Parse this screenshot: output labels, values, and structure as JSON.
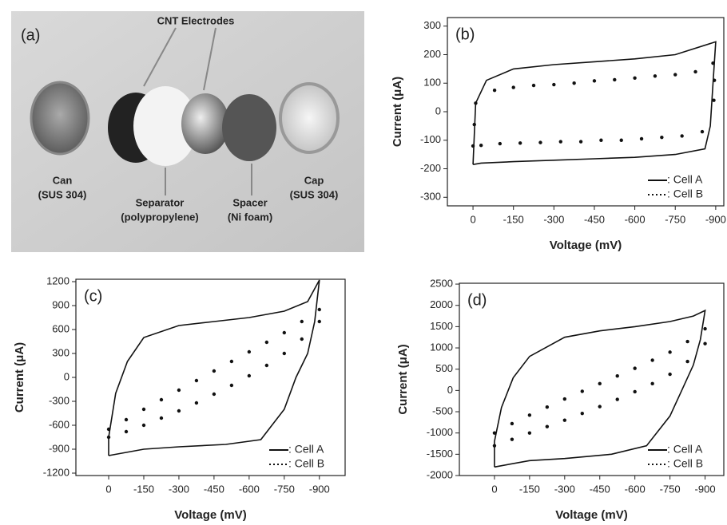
{
  "photo": {
    "label": "(a)",
    "heading": "CNT Electrodes",
    "items": [
      {
        "name": "Can",
        "detail": "(SUS 304)"
      },
      {
        "name": "Separator",
        "detail": "(polypropylene)"
      },
      {
        "name": "Spacer",
        "detail": "(Ni foam)"
      },
      {
        "name": "Cap",
        "detail": "(SUS 304)"
      }
    ]
  },
  "chart_data": [
    {
      "type": "line",
      "label": "(b)",
      "x_label": "Voltage (mV)",
      "y_label": "Current (μA)",
      "xlim": [
        95,
        -930
      ],
      "ylim": [
        -330,
        330
      ],
      "xticks": [
        0,
        -150,
        -300,
        -450,
        -600,
        -750,
        -900
      ],
      "yticks": [
        -300,
        -200,
        -100,
        0,
        100,
        200,
        300
      ],
      "legend": "lower right",
      "series": [
        {
          "name": ": Cell A",
          "style": "solid",
          "color": "#111111",
          "x": [
            0,
            -10,
            -50,
            -150,
            -300,
            -450,
            -600,
            -750,
            -900,
            -890,
            -880,
            -860,
            -750,
            -600,
            -450,
            -300,
            -150,
            -30,
            0
          ],
          "values": [
            -185,
            30,
            110,
            150,
            165,
            175,
            185,
            200,
            245,
            100,
            -50,
            -130,
            -150,
            -160,
            -165,
            -170,
            -175,
            -180,
            -185
          ]
        },
        {
          "name": ": Cell B",
          "style": "dotted",
          "color": "#111111",
          "x": [
            -10,
            -5,
            0,
            -30,
            -100,
            -175,
            -250,
            -325,
            -400,
            -475,
            -550,
            -625,
            -700,
            -775,
            -850,
            -893,
            -895,
            -890,
            -825,
            -750,
            -675,
            -600,
            -525,
            -450,
            -375,
            -300,
            -225,
            -150,
            -80
          ],
          "values": [
            30,
            -45,
            -120,
            -118,
            -112,
            -110,
            -108,
            -105,
            -105,
            -100,
            -100,
            -95,
            -90,
            -85,
            -70,
            40,
            110,
            170,
            140,
            130,
            125,
            118,
            112,
            108,
            100,
            95,
            92,
            85,
            75
          ]
        }
      ]
    },
    {
      "type": "line",
      "label": "(c)",
      "x_label": "Voltage (mV)",
      "y_label": "Current (μA)",
      "xlim": [
        140,
        -1010
      ],
      "ylim": [
        -1230,
        1230
      ],
      "xticks": [
        0,
        -150,
        -300,
        -450,
        -600,
        -750,
        -900
      ],
      "yticks": [
        -1200,
        -900,
        -600,
        -300,
        0,
        300,
        600,
        900,
        1200
      ],
      "legend": "lower right",
      "series": [
        {
          "name": ": Cell A",
          "style": "solid",
          "color": "#111111",
          "x": [
            0,
            0,
            -30,
            -80,
            -150,
            -300,
            -450,
            -600,
            -750,
            -850,
            -900,
            -880,
            -850,
            -800,
            -750,
            -650,
            -500,
            -300,
            -150,
            0
          ],
          "values": [
            -980,
            -750,
            -200,
            200,
            500,
            650,
            700,
            750,
            830,
            950,
            1220,
            700,
            300,
            0,
            -400,
            -780,
            -840,
            -870,
            -900,
            -980
          ]
        },
        {
          "name": ": Cell B",
          "style": "dotted",
          "color": "#111111",
          "x": [
            0,
            -75,
            -150,
            -225,
            -300,
            -375,
            -450,
            -525,
            -600,
            -675,
            -750,
            -825,
            -900,
            0,
            -75,
            -150,
            -225,
            -300,
            -375,
            -450,
            -525,
            -600,
            -675,
            -750,
            -825,
            -900
          ],
          "values": [
            -650,
            -530,
            -400,
            -280,
            -160,
            -40,
            80,
            200,
            320,
            440,
            560,
            700,
            850,
            -750,
            -680,
            -600,
            -510,
            -420,
            -320,
            -210,
            -100,
            20,
            150,
            300,
            480,
            700
          ]
        }
      ]
    },
    {
      "type": "line",
      "label": "(d)",
      "x_label": "Voltage (mV)",
      "y_label": "Current (μA)",
      "xlim": [
        150,
        -980
      ],
      "ylim": [
        -2000,
        2520
      ],
      "xticks": [
        0,
        -150,
        -300,
        -450,
        -600,
        -750,
        -900
      ],
      "yticks": [
        -2000,
        -1500,
        -1000,
        -500,
        0,
        500,
        1000,
        1500,
        2000,
        2500
      ],
      "legend": "lower right",
      "series": [
        {
          "name": ": Cell A",
          "style": "solid",
          "color": "#111111",
          "x": [
            0,
            0,
            -30,
            -80,
            -150,
            -300,
            -450,
            -600,
            -750,
            -850,
            -900,
            -880,
            -850,
            -800,
            -750,
            -650,
            -500,
            -300,
            -150,
            0
          ],
          "values": [
            -1800,
            -1200,
            -400,
            300,
            800,
            1250,
            1400,
            1500,
            1620,
            1750,
            1880,
            1200,
            600,
            0,
            -600,
            -1300,
            -1500,
            -1600,
            -1650,
            -1800
          ]
        },
        {
          "name": ": Cell B",
          "style": "dotted",
          "color": "#111111",
          "x": [
            0,
            -75,
            -150,
            -225,
            -300,
            -375,
            -450,
            -525,
            -600,
            -675,
            -750,
            -825,
            -900,
            0,
            -75,
            -150,
            -225,
            -300,
            -375,
            -450,
            -525,
            -600,
            -675,
            -750,
            -825,
            -900
          ],
          "values": [
            -1000,
            -780,
            -580,
            -390,
            -200,
            -20,
            160,
            340,
            520,
            710,
            900,
            1150,
            1450,
            -1300,
            -1150,
            -1000,
            -850,
            -700,
            -540,
            -380,
            -210,
            -30,
            160,
            380,
            680,
            1100
          ]
        }
      ]
    }
  ]
}
